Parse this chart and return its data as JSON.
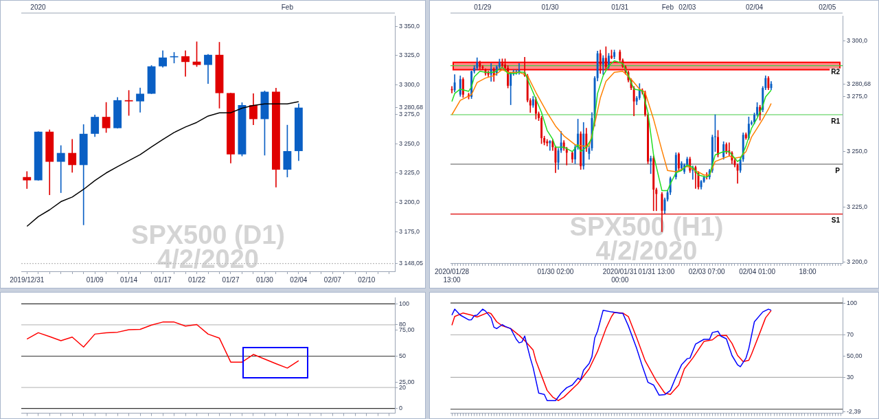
{
  "chart_data": [
    {
      "type": "candlestick",
      "title": "SPX500 (D1)",
      "subtitle": "4/2/2020",
      "categories": [
        "2019/12/31",
        null,
        null,
        null,
        null,
        null,
        "01/09",
        null,
        null,
        "01/14",
        null,
        null,
        "01/17",
        null,
        null,
        "01/22",
        null,
        null,
        "01/27",
        null,
        null,
        "01/30",
        null,
        null,
        "02/04",
        null,
        null,
        "02/07",
        null,
        null,
        "02/10",
        null,
        null
      ],
      "ohlc": [
        [
          3221.6,
          3226.3,
          3211.8,
          3218.8
        ],
        [
          3218.8,
          3260.2,
          3218.8,
          3260.2
        ],
        [
          3260.2,
          3261.8,
          3206.5,
          3234.6
        ],
        [
          3234.6,
          3248.4,
          3208.3,
          3242.1
        ],
        [
          3242.1,
          3253.7,
          3225.6,
          3231.8
        ],
        [
          3231.8,
          3266.3,
          3180.9,
          3258.4
        ],
        [
          3258.4,
          3274.4,
          3256.0,
          3272.8
        ],
        [
          3272.8,
          3285.1,
          3259.5,
          3263.2
        ],
        [
          3263.2,
          3289.3,
          3263.2,
          3287.0
        ],
        [
          3287.0,
          3295.3,
          3274.0,
          3286.0
        ],
        [
          3286.0,
          3297.4,
          3276.7,
          3292.5
        ],
        [
          3292.5,
          3316.5,
          3292.5,
          3315.8
        ],
        [
          3315.8,
          3329.1,
          3315.0,
          3323.3
        ],
        [
          3323.5,
          3327.7,
          3318.6,
          3324.4
        ],
        [
          3324.4,
          3329.1,
          3307.2,
          3319.5
        ],
        [
          3319.8,
          3336.7,
          3315.6,
          3317.0
        ],
        [
          3317.0,
          3326.0,
          3301.2,
          3325.6
        ],
        [
          3325.6,
          3336.3,
          3280.2,
          3293.0
        ],
        [
          3293.0,
          3293.0,
          3233.5,
          3240.9
        ],
        [
          3240.9,
          3284.9,
          3239.5,
          3282.8
        ],
        [
          3282.8,
          3292.5,
          3266.0,
          3270.9
        ],
        [
          3270.9,
          3294.9,
          3240.2,
          3294.2
        ],
        [
          3294.2,
          3297.2,
          3213.0,
          3227.9
        ],
        [
          3227.9,
          3265.8,
          3221.6,
          3243.7
        ],
        [
          3243.7,
          3283.9,
          3235.6,
          3280.68
        ],
        null,
        null,
        null,
        null,
        null,
        null,
        null,
        null
      ],
      "colors": [
        "#e00000",
        "#0a5fc4",
        "#e00000",
        "#0a5fc4",
        "#e00000",
        "#0a5fc4",
        "#0a5fc4",
        "#e00000",
        "#0a5fc4",
        "#e00000",
        "#0a5fc4",
        "#0a5fc4",
        "#0a5fc4",
        "#0a5fc4",
        "#e00000",
        "#e00000",
        "#0a5fc4",
        "#e00000",
        "#e00000",
        "#0a5fc4",
        "#e00000",
        "#0a5fc4",
        "#e00000",
        "#0a5fc4",
        "#0a5fc4",
        null,
        null,
        null,
        null,
        null,
        null,
        null,
        null
      ],
      "series": [
        {
          "type": "line",
          "color": "#000000",
          "values": [
            3179.7,
            3187.9,
            3193.7,
            3200.7,
            3204.6,
            3211.1,
            3218.6,
            3225.1,
            3230.4,
            3235.6,
            3240.7,
            3247.2,
            3253.5,
            3259.5,
            3264.2,
            3268.1,
            3273.5,
            3276.3,
            3276.3,
            3280.2,
            3282.5,
            3283.9,
            3283.9,
            3283.9,
            3285.8,
            null,
            null,
            null,
            null,
            null,
            null,
            null,
            null
          ]
        }
      ],
      "annotations": [
        "2020",
        "Feb"
      ],
      "ylim": [
        3141.4,
        3358.8
      ],
      "yticks": [
        {
          "value": 3148.05,
          "label": "3 148,05"
        },
        {
          "value": 3175,
          "label": "3 175,0"
        },
        {
          "value": 3200,
          "label": "3 200,0"
        },
        {
          "value": 3225,
          "label": "3 225,0"
        },
        {
          "value": 3250,
          "label": "3 250,0"
        },
        {
          "value": 3275,
          "label": "3 275,0"
        },
        {
          "value": 3280.68,
          "label": "3 280,68"
        },
        {
          "value": 3300,
          "label": "3 300,0"
        },
        {
          "value": 3325,
          "label": "3 325,0"
        },
        {
          "value": 3350,
          "label": "3 350,0"
        }
      ],
      "ref_lines": [
        {
          "axis": "y",
          "value": 3148.05,
          "color": "#bbbbbb",
          "line_style": "dotted"
        }
      ]
    },
    {
      "type": "candlestick",
      "title": "SPX500 (H1)",
      "subtitle": "4/2/2020",
      "categories": [
        "2020/01/28 13:00",
        null,
        null,
        null,
        null,
        null,
        null,
        null,
        null,
        null,
        null,
        null,
        null,
        null,
        null,
        null,
        null,
        null,
        null,
        null,
        null,
        null,
        null,
        null,
        null,
        null,
        null,
        null,
        null,
        null,
        null,
        null,
        null,
        null,
        null,
        null,
        null,
        "01/30 02:00",
        null,
        null,
        null,
        null,
        null,
        null,
        null,
        null,
        null,
        null,
        null,
        null,
        null,
        null,
        null,
        null,
        null,
        null,
        null,
        null,
        null,
        null,
        "2020/01/31 00:00",
        null,
        null,
        null,
        null,
        null,
        null,
        null,
        null,
        null,
        null,
        null,
        null,
        "01/31 13:00",
        null,
        null,
        null,
        null,
        null,
        null,
        null,
        null,
        null,
        null,
        null,
        null,
        null,
        null,
        null,
        null,
        null,
        "02/03 07:00",
        null,
        null,
        null,
        null,
        null,
        null,
        null,
        null,
        null,
        null,
        null,
        null,
        null,
        null,
        null,
        null,
        null,
        "02/04 01:00",
        null,
        null,
        null,
        null,
        null,
        null,
        null,
        null,
        null,
        null,
        null,
        null,
        null,
        null,
        null,
        null,
        null,
        "18:00",
        null,
        null,
        null,
        null,
        null,
        null,
        null,
        null,
        null,
        null,
        null,
        null
      ],
      "ohlc": [
        [
          3278.3,
          3279.5,
          3276.5,
          3277.8
        ],
        [
          3277.8,
          3284.9,
          3277,
          3281.3
        ],
        null,
        [
          3275.8,
          3284.3,
          3275,
          3282.8
        ],
        [
          3282.8,
          3283.5,
          3274.5,
          3275.8
        ],
        null,
        [
          3275.8,
          3276.5,
          3273.8,
          3274.8
        ],
        [
          3274.8,
          3286.5,
          3274,
          3286.4
        ],
        [
          3286.4,
          3289,
          3285.5,
          3287.9
        ],
        [
          3287.9,
          3292.5,
          3287,
          3290.4
        ],
        [
          3290.1,
          3291,
          3287.5,
          3288.4
        ],
        [
          3288.4,
          3289,
          3287,
          3287.9
        ],
        [
          3286.9,
          3287.5,
          3284.5,
          3285.4
        ],
        [
          3285.9,
          3286.5,
          3284,
          3284.9
        ],
        [
          3284.9,
          3289.9,
          3281.8,
          3287.4
        ],
        [
          3287.4,
          3288,
          3281.8,
          3284.4
        ],
        [
          3285.4,
          3289,
          3284.5,
          3288.4
        ],
        [
          3288.4,
          3291.9,
          3287.5,
          3290.4
        ],
        [
          3289.9,
          3292,
          3288,
          3288.9
        ],
        [
          3289.4,
          3292,
          3287,
          3287.9
        ],
        [
          3287.9,
          3289,
          3278.8,
          3279.8
        ],
        [
          3279.8,
          3286,
          3271.2,
          3285.9
        ],
        [
          3285.4,
          3287,
          3284.5,
          3286.4
        ],
        [
          3285.9,
          3287,
          3285,
          3286.4
        ],
        [
          3285.9,
          3289.9,
          3285,
          3286.9
        ],
        null,
        [
          3285.9,
          3292.7,
          3284,
          3284.4
        ],
        [
          3284.4,
          3285,
          3272.5,
          3273.2
        ],
        [
          3273.2,
          3274,
          3267.7,
          3270.9
        ],
        [
          3270.9,
          3275,
          3270,
          3273.7
        ],
        [
          3273.7,
          3274.5,
          3264.7,
          3267.2
        ],
        [
          3267.2,
          3268,
          3264,
          3265.2
        ],
        [
          3265.2,
          3266,
          3253.6,
          3256.1
        ],
        [
          3256.1,
          3257,
          3253,
          3254.1
        ],
        [
          3254.6,
          3255.5,
          3252.5,
          3253.8
        ],
        [
          3253.8,
          3255,
          3250.5,
          3254.8
        ],
        [
          3254.8,
          3255.5,
          3250.5,
          3252.0
        ],
        [
          3252.0,
          3252.5,
          3240.4,
          3245.0
        ],
        [
          3245.0,
          3251.5,
          3241.9,
          3250.5
        ],
        [
          3250.5,
          3259.1,
          3249.5,
          3254.1
        ],
        [
          3254.1,
          3255,
          3250.5,
          3251.5
        ],
        [
          3251.5,
          3252,
          3243.9,
          3249.5
        ],
        null,
        [
          3249.5,
          3250,
          3245,
          3246.5
        ],
        [
          3246.5,
          3253,
          3244.5,
          3252.0
        ],
        [
          3252.0,
          3264.7,
          3251,
          3258.1
        ],
        [
          3258.1,
          3259,
          3241.9,
          3243.4
        ],
        [
          3243.4,
          3263.2,
          3242,
          3258.1
        ],
        [
          3258.1,
          3260.6,
          3250,
          3251.5
        ],
        [
          3249.0,
          3252.5,
          3246.5,
          3251.5
        ],
        [
          3251.5,
          3267.7,
          3250.5,
          3265.2
        ],
        [
          3265.2,
          3284,
          3261.5,
          3283.3
        ],
        [
          3283.3,
          3295.5,
          3282,
          3294.5
        ],
        [
          3294.5,
          3296,
          3285.4,
          3289.4
        ],
        [
          3289.4,
          3293.5,
          3284.9,
          3292.4
        ],
        [
          3292.4,
          3297.5,
          3287.5,
          3288.4
        ],
        [
          3288.4,
          3294.5,
          3287.5,
          3293.4
        ],
        [
          3293.4,
          3296,
          3292,
          3292.4
        ],
        [
          3292.9,
          3296,
          3292,
          3295.0
        ],
        null,
        [
          3295.2,
          3296,
          3290.5,
          3291.4
        ],
        [
          3291.4,
          3292,
          3288,
          3288.4
        ],
        [
          3288.4,
          3289,
          3285,
          3285.9
        ],
        [
          3285.9,
          3286.5,
          3281.5,
          3282.3
        ],
        [
          3282.3,
          3283,
          3278,
          3278.8
        ],
        [
          3278.8,
          3279.5,
          3266.2,
          3272.7
        ],
        [
          3272.7,
          3275,
          3271.2,
          3274.3
        ],
        [
          3274.3,
          3280.8,
          3273.5,
          3277.8
        ],
        [
          3277.8,
          3278.5,
          3276,
          3276.8
        ],
        [
          3276.8,
          3277.5,
          3266,
          3266.7
        ],
        [
          3266.7,
          3267.5,
          3244.5,
          3245.5
        ],
        [
          3245.5,
          3248,
          3240,
          3247.0
        ],
        [
          3247.0,
          3248,
          3223.2,
          3232.8
        ],
        [
          3232.8,
          3233.5,
          3223.2,
          3230.8
        ],
        null,
        [
          3230.8,
          3231.5,
          3213.7,
          3223.2
        ],
        [
          3223.2,
          3229,
          3222,
          3228.3
        ],
        [
          3228.3,
          3232.5,
          3227.5,
          3231.5
        ],
        [
          3231.5,
          3238.5,
          3230.5,
          3237.9
        ],
        null,
        [
          3238.4,
          3249.5,
          3237.5,
          3248.5
        ],
        [
          3249.0,
          3249.5,
          3241.5,
          3242.4
        ],
        [
          3242.4,
          3245.5,
          3241.5,
          3244.7
        ],
        [
          3240.9,
          3244.5,
          3240,
          3243.9
        ],
        [
          3243.9,
          3247.5,
          3243,
          3246.7
        ],
        [
          3246.7,
          3247.5,
          3240.5,
          3241.4
        ],
        [
          3241.4,
          3243.5,
          3237.4,
          3242.9
        ],
        [
          3242.9,
          3243.5,
          3233.3,
          3240.4
        ],
        [
          3240.4,
          3241,
          3233,
          3233.9
        ],
        [
          3233.9,
          3237,
          3233,
          3236.6
        ],
        [
          3236.4,
          3239,
          3236,
          3238.4
        ],
        [
          3238.6,
          3240.5,
          3237.5,
          3238.4
        ],
        [
          3238.4,
          3242,
          3237.5,
          3241.4
        ],
        [
          3241.4,
          3257.5,
          3240.5,
          3256.6
        ],
        [
          3256.6,
          3266.7,
          3250,
          3256.8
        ],
        [
          3256.6,
          3259.6,
          3247.5,
          3248.5
        ],
        null,
        [
          3247.5,
          3254.5,
          3246.5,
          3253.3
        ],
        [
          3253.3,
          3254,
          3249,
          3250.0
        ],
        [
          3250.5,
          3254,
          3248,
          3249.5
        ],
        [
          3249.5,
          3250,
          3244.5,
          3246.0
        ],
        [
          3246.0,
          3247,
          3243,
          3243.9
        ],
        [
          3243.9,
          3244.5,
          3235.6,
          3241.4
        ],
        [
          3241.4,
          3247.5,
          3240.5,
          3246.5
        ],
        [
          3246.5,
          3258.5,
          3245.5,
          3257.6
        ],
        [
          3257.8,
          3258.5,
          3255.5,
          3256.1
        ],
        [
          3256.1,
          3265.7,
          3255.5,
          3262.6
        ],
        [
          3262.6,
          3264,
          3262,
          3263.2
        ],
        [
          3263.2,
          3267.5,
          3262.5,
          3266.7
        ],
        [
          3266.7,
          3272.2,
          3266,
          3270.2
        ],
        [
          3270.2,
          3271,
          3264.2,
          3266.7
        ],
        [
          3268.9,
          3279.5,
          3268,
          3278.8
        ],
        [
          3278.8,
          3284.3,
          3278,
          3283.3
        ],
        [
          3283.3,
          3284,
          3278,
          3278.8
        ],
        [
          3278.8,
          3281.8,
          3278,
          3280.68
        ],
        null,
        null,
        null,
        null,
        null,
        null,
        null,
        null,
        null,
        null,
        null,
        null,
        null,
        null,
        null,
        null,
        null,
        null,
        null,
        null,
        null,
        null,
        null,
        null,
        null
      ],
      "colors": [
        "#e00000",
        "#0a5fc4",
        null,
        "#0a5fc4",
        "#e00000",
        null,
        "#e00000",
        "#0a5fc4",
        "#0a5fc4",
        "#0a5fc4",
        "#e00000",
        "#e00000",
        "#e00000",
        "#e00000",
        "#0a5fc4",
        "#e00000",
        "#0a5fc4",
        "#0a5fc4",
        "#e00000",
        "#e00000",
        "#e00000",
        "#0a5fc4",
        "#0a5fc4",
        "#0a5fc4",
        "#0a5fc4",
        null,
        "#e00000",
        "#e00000",
        "#e00000",
        "#0a5fc4",
        "#e00000",
        "#e00000",
        "#e00000",
        "#e00000",
        "#e00000",
        "#0a5fc4",
        "#e00000",
        "#e00000",
        "#0a5fc4",
        "#0a5fc4",
        "#e00000",
        "#e00000",
        null,
        "#e00000",
        "#0a5fc4",
        "#0a5fc4",
        "#e00000",
        "#0a5fc4",
        "#e00000",
        "#0a5fc4",
        "#0a5fc4",
        "#0a5fc4",
        "#0a5fc4",
        "#e00000",
        "#0a5fc4",
        "#e00000",
        "#0a5fc4",
        "#e00000",
        "#0a5fc4",
        null,
        "#e00000",
        "#e00000",
        "#e00000",
        "#e00000",
        "#e00000",
        "#e00000",
        "#0a5fc4",
        "#0a5fc4",
        "#e00000",
        "#e00000",
        "#e00000",
        "#0a5fc4",
        "#e00000",
        "#e00000",
        null,
        "#e00000",
        "#0a5fc4",
        "#0a5fc4",
        "#0a5fc4",
        null,
        "#0a5fc4",
        "#e00000",
        "#0a5fc4",
        "#0a5fc4",
        "#0a5fc4",
        "#e00000",
        "#0a5fc4",
        "#e00000",
        "#e00000",
        "#0a5fc4",
        "#0a5fc4",
        "#e00000",
        "#0a5fc4",
        "#0a5fc4",
        "#0a5fc4",
        "#e00000",
        null,
        "#0a5fc4",
        "#e00000",
        "#e00000",
        "#e00000",
        "#e00000",
        "#e00000",
        "#0a5fc4",
        "#0a5fc4",
        "#e00000",
        "#0a5fc4",
        "#0a5fc4",
        "#0a5fc4",
        "#0a5fc4",
        "#e00000",
        "#0a5fc4",
        "#0a5fc4",
        "#e00000",
        "#0a5fc4",
        null,
        null,
        null,
        null,
        null,
        null,
        null,
        null,
        null,
        null,
        null,
        null,
        null,
        null,
        null,
        null,
        null,
        null,
        null,
        null,
        null,
        null,
        null,
        null,
        null
      ],
      "series": [
        {
          "type": "line",
          "color": "#22dd22",
          "values": [
            3272.7,
            3276.3,
            null,
            3278.3,
            null,
            null,
            3277.3,
            3279.3,
            3283.9,
            null,
            3286.4,
            null,
            3285.9,
            null,
            null,
            3285.9,
            null,
            3287.4,
            3288.1,
            3286.9,
            3285.4,
            null,
            null,
            3285.4,
            3286.1,
            null,
            3285.9,
            3282.8,
            null,
            3276.8,
            null,
            null,
            3267.7,
            null,
            3259.6,
            null,
            3255.6,
            3252.0,
            null,
            null,
            3252.0,
            null,
            null,
            3250.0,
            null,
            3253.1,
            3250.0,
            null,
            3252.0,
            null,
            3256.1,
            3265.7,
            3276.3,
            null,
            3284.4,
            null,
            3288.9,
            null,
            3291.1,
            null,
            null,
            3289.9,
            null,
            3284.4,
            null,
            3278.3,
            null,
            null,
            3277.6,
            null,
            3267.7,
            null,
            3248.5,
            null,
            null,
            3232.3,
            null,
            3232.3,
            3235.4,
            null,
            3240.4,
            null,
            3241.4,
            null,
            3243.9,
            null,
            3242.9,
            null,
            3239.4,
            null,
            null,
            3238.4,
            3239.4,
            null,
            3248.5,
            null,
            null,
            3250.0,
            null,
            3250.0,
            null,
            3247.0,
            3245.5,
            3246.5,
            null,
            3252.5,
            null,
            3260.6,
            null,
            3265.2,
            null,
            3270.7,
            3274.8,
            null,
            3277.8,
            null,
            null,
            null,
            null,
            null,
            null,
            null,
            null,
            null,
            null,
            null,
            null,
            null,
            null,
            null,
            null,
            null,
            null,
            null,
            null,
            null,
            null,
            null,
            null,
            null
          ]
        },
        {
          "type": "line",
          "color": "#ff8000",
          "values": [
            3266.7,
            null,
            null,
            3273.2,
            null,
            null,
            null,
            3275.8,
            null,
            3281.3,
            null,
            null,
            3283.3,
            null,
            null,
            3284.4,
            null,
            null,
            3287.1,
            null,
            3285.9,
            null,
            null,
            null,
            3285.9,
            null,
            null,
            3284.4,
            null,
            null,
            3276.8,
            null,
            null,
            null,
            3267.7,
            null,
            null,
            3261.6,
            null,
            null,
            3257.1,
            null,
            null,
            null,
            3253.1,
            null,
            null,
            3252.5,
            null,
            3252.5,
            null,
            3262.6,
            null,
            3274.3,
            null,
            3281.8,
            null,
            null,
            3285.9,
            null,
            null,
            3286.4,
            null,
            null,
            3282.8,
            null,
            null,
            3278.3,
            null,
            3276.8,
            null,
            null,
            3264.7,
            null,
            null,
            3250.5,
            null,
            3241.4,
            null,
            null,
            3240.9,
            null,
            3241.9,
            null,
            3243.4,
            null,
            null,
            3241.4,
            null,
            null,
            3239.4,
            null,
            3239.4,
            null,
            3245.5,
            null,
            null,
            3247.0,
            null,
            3248.0,
            null,
            3247.0,
            null,
            3247.5,
            null,
            3250.0,
            null,
            3256.6,
            null,
            3260.6,
            null,
            3264.7,
            null,
            3269.2,
            3271.8,
            null,
            null,
            null,
            null,
            null,
            null,
            null,
            null,
            null,
            null,
            null,
            null,
            null,
            null,
            null,
            null,
            null,
            null,
            null,
            null,
            null,
            null,
            null,
            null,
            null
          ]
        }
      ],
      "annotations": [
        "01/29",
        "01/30",
        "01/31",
        "Feb",
        "02/03",
        "02/04",
        "02/05"
      ],
      "ylim": [
        3199.5,
        3311.5
      ],
      "yticks": [
        {
          "value": 3200,
          "label": "3 200,0"
        },
        {
          "value": 3225,
          "label": "3 225,0"
        },
        {
          "value": 3250,
          "label": "3 250,0"
        },
        {
          "value": 3275,
          "label": "3 275,0"
        },
        {
          "value": 3280.68,
          "label": "3 280,68"
        },
        {
          "value": 3300,
          "label": "3 300,0"
        }
      ],
      "bands": [
        {
          "axis": "y",
          "from": 3287.1,
          "to": 3290.4,
          "color": "#ff0000"
        }
      ],
      "ref_lines": [
        {
          "axis": "y",
          "value": 3288.9,
          "label": "R2",
          "color": "#44cc44"
        },
        {
          "axis": "y",
          "value": 3266.7,
          "label": "R1",
          "color": "#44cc44"
        },
        {
          "axis": "y",
          "value": 3244.3,
          "label": "P",
          "color": "#555555"
        },
        {
          "axis": "y",
          "value": 3221.7,
          "label": "S1",
          "color": "#dd0000"
        }
      ]
    },
    {
      "type": "line",
      "tick_labels": "y",
      "categories": [
        null,
        null,
        null,
        null,
        null,
        null,
        null,
        null,
        null,
        null,
        null,
        null,
        null,
        null,
        null,
        null,
        null,
        null,
        null,
        null,
        null,
        null,
        null,
        null,
        null,
        null,
        null,
        null,
        null,
        null,
        null,
        null,
        null
      ],
      "series": [
        {
          "color": "#ff0000",
          "values": [
            66.3,
            72.4,
            68.7,
            64.8,
            68.2,
            58.7,
            71.1,
            72.4,
            72.9,
            75.3,
            75.6,
            79.7,
            82.6,
            82.6,
            78.7,
            80.2,
            71.1,
            67.2,
            44.3,
            44.3,
            51.6,
            47.2,
            42.8,
            38.6,
            45.7,
            null,
            null,
            null,
            null,
            null,
            null,
            null,
            null
          ]
        }
      ],
      "ylim": [
        -4.6,
        105.9
      ],
      "yticks": [
        0,
        20,
        {
          "value": 25,
          "label": "25,00"
        },
        50,
        {
          "value": 75,
          "label": "75,00"
        },
        80,
        100
      ],
      "ref_lines": [
        {
          "axis": "y",
          "value": 0,
          "color": "#333333"
        },
        {
          "axis": "y",
          "value": 20,
          "color": "#c0c0c0"
        },
        {
          "axis": "y",
          "value": 50,
          "color": "#333333"
        },
        {
          "axis": "y",
          "value": 80,
          "color": "#c0c0c0"
        },
        {
          "axis": "y",
          "value": 100,
          "color": "#333333"
        }
      ]
    },
    {
      "type": "line",
      "tick_labels": "y",
      "categories": [
        null,
        null,
        null,
        null,
        null,
        null,
        null,
        null,
        null,
        null,
        null,
        null,
        null,
        null,
        null,
        null,
        null,
        null,
        null,
        null,
        null,
        null,
        null,
        null,
        null,
        null,
        null,
        null,
        null,
        null,
        null,
        null,
        null,
        null,
        null,
        null,
        null,
        null,
        null,
        null,
        null,
        null,
        null,
        null,
        null,
        null,
        null,
        null,
        null,
        null,
        null,
        null,
        null,
        null,
        null,
        null,
        null,
        null,
        null,
        null,
        null,
        null,
        null,
        null,
        null,
        null,
        null,
        null,
        null,
        null,
        null,
        null,
        null,
        null,
        null,
        null,
        null,
        null,
        null,
        null,
        null,
        null,
        null,
        null,
        null,
        null,
        null,
        null,
        null,
        null,
        null,
        null,
        null,
        null,
        null,
        null,
        null,
        null,
        null,
        null,
        null,
        null,
        null,
        null,
        null,
        null,
        null,
        null,
        null,
        null,
        null,
        null,
        null,
        null,
        null,
        null,
        null,
        null,
        null,
        null,
        null,
        null,
        null,
        null,
        null,
        null,
        null,
        null,
        null,
        null,
        null,
        null,
        null,
        null,
        null,
        null,
        null,
        null,
        null,
        null
      ],
      "series": [
        {
          "color": "#0000ff",
          "values": [
            88.6,
            94.2,
            null,
            88.6,
            null,
            null,
            84.1,
            84.3,
            88.1,
            88.6,
            null,
            94.2,
            92.4,
            null,
            86.1,
            77.2,
            75.9,
            null,
            79.7,
            78.0,
            null,
            75.9,
            null,
            65.8,
            62.5,
            63.3,
            68.9,
            null,
            48.1,
            39.2,
            null,
            15.2,
            null,
            13.9,
            8.1,
            null,
            null,
            8.1,
            null,
            15.2,
            null,
            20.3,
            null,
            22.8,
            null,
            29.1,
            27.8,
            36.7,
            null,
            43.0,
            49.4,
            67.1,
            73.4,
            null,
            93.2,
            null,
            null,
            91.6,
            null,
            null,
            90.4,
            90.4,
            null,
            78.5,
            null,
            null,
            57.0,
            null,
            40.5,
            null,
            25.3,
            null,
            22.8,
            null,
            13.2,
            null,
            13.7,
            null,
            17.7,
            null,
            30.4,
            null,
            41.8,
            null,
            47.6,
            48.1,
            null,
            61.3,
            null,
            null,
            65.8,
            null,
            65.8,
            72.2,
            null,
            73.4,
            68.9,
            null,
            66.3,
            null,
            50.6,
            null,
            41.8,
            40.0,
            null,
            48.1,
            57.0,
            null,
            82.3,
            null,
            null,
            91.6,
            null,
            94.2,
            93.2,
            null,
            null,
            null,
            null,
            null,
            null,
            null,
            null,
            null,
            null,
            null,
            null,
            null,
            null,
            null,
            null,
            null,
            null,
            null,
            null,
            null,
            null,
            null,
            null,
            null
          ]
        },
        {
          "color": "#ff0000",
          "values": [
            79.0,
            87.3,
            null,
            null,
            90.6,
            null,
            null,
            88.6,
            null,
            86.8,
            null,
            null,
            null,
            91.1,
            89.9,
            null,
            82.3,
            null,
            78.5,
            null,
            null,
            75.9,
            null,
            null,
            69.6,
            null,
            64.6,
            null,
            null,
            55.7,
            45.6,
            null,
            31.6,
            null,
            17.7,
            null,
            11.4,
            null,
            8.1,
            null,
            11.4,
            null,
            null,
            null,
            null,
            24.1,
            null,
            null,
            null,
            38.0,
            null,
            null,
            54.4,
            null,
            null,
            75.9,
            null,
            87.3,
            91.1,
            null,
            null,
            90.6,
            null,
            87.3,
            null,
            null,
            67.1,
            null,
            null,
            45.6,
            null,
            null,
            null,
            26.6,
            null,
            null,
            15.2,
            null,
            13.9,
            null,
            null,
            22.8,
            null,
            38.0,
            null,
            null,
            48.1,
            null,
            null,
            null,
            63.8,
            null,
            null,
            65.3,
            null,
            69.4,
            null,
            null,
            69.6,
            null,
            62.0,
            null,
            50.6,
            null,
            44.8,
            null,
            46.1,
            51.9,
            null,
            null,
            72.2,
            null,
            86.1,
            null,
            92.9,
            null,
            null,
            null,
            null,
            null,
            null,
            null,
            null,
            null,
            null,
            null,
            null,
            null,
            null,
            null,
            null,
            null,
            null,
            null,
            null,
            null,
            null,
            null,
            null,
            null
          ]
        }
      ],
      "ylim": [
        -3.8,
        105
      ],
      "yticks": [
        {
          "value": -2.39,
          "label": "-2,39"
        },
        30,
        {
          "value": 50,
          "label": "50,00"
        },
        70,
        100
      ],
      "ref_lines": [
        {
          "axis": "y",
          "value": 0,
          "color": "#333333"
        },
        {
          "axis": "y",
          "value": 30,
          "color": "#b0b0b0"
        },
        {
          "axis": "y",
          "value": 70,
          "color": "#b0b0b0"
        },
        {
          "axis": "y",
          "value": 100,
          "color": "#333333"
        }
      ]
    }
  ]
}
